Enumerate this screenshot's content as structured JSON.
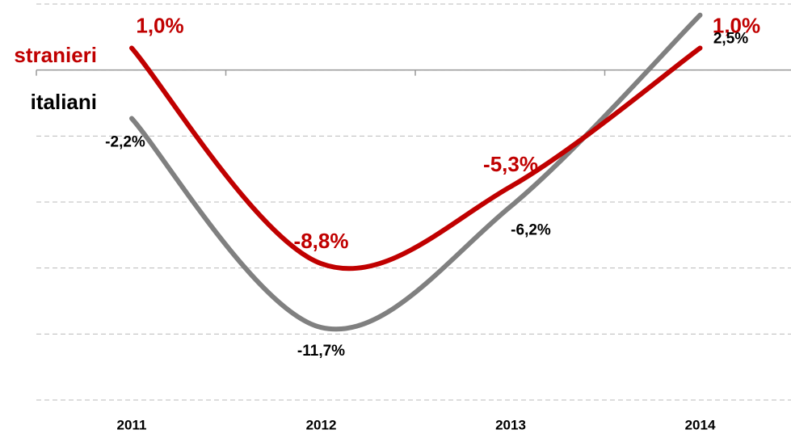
{
  "chart_data": {
    "type": "line",
    "categories": [
      "2011",
      "2012",
      "2013",
      "2014"
    ],
    "series": [
      {
        "name": "stranieri",
        "color": "#c00000",
        "values": [
          1.0,
          -8.8,
          -5.3,
          1.0
        ],
        "value_labels": [
          "1,0%",
          "-8,8%",
          "-5,3%",
          "1,0%"
        ]
      },
      {
        "name": "italiani",
        "color": "#808080",
        "values": [
          -2.2,
          -11.7,
          -6.2,
          2.5
        ],
        "value_labels": [
          "-2,2%",
          "-11,7%",
          "-6,2%",
          "2,5%"
        ]
      }
    ],
    "ylim": [
      -15,
      3
    ],
    "yticks": [
      -15,
      -12,
      -9,
      -6,
      -3,
      0,
      3
    ],
    "grid": true
  }
}
